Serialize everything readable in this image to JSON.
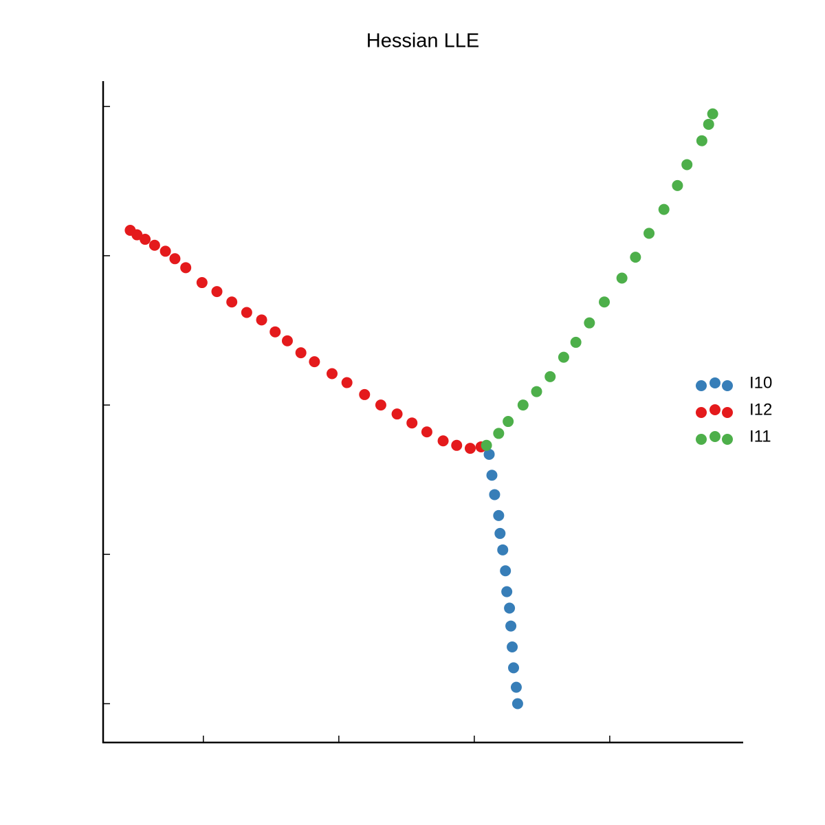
{
  "chart_data": {
    "type": "scatter",
    "title": "Hessian LLE",
    "xlim": [
      0.26,
      4.98
    ],
    "ylim": [
      -0.26,
      4.16
    ],
    "xticks": [
      1,
      2,
      3,
      4
    ],
    "yticks": [
      0,
      1,
      2,
      3,
      4
    ],
    "grid": false,
    "legend": "right",
    "series": [
      {
        "name": "I10",
        "color": "#377eb8",
        "x": [
          3.11,
          3.13,
          3.15,
          3.18,
          3.19,
          3.21,
          3.23,
          3.24,
          3.26,
          3.27,
          3.28,
          3.29,
          3.31,
          3.32
        ],
        "values": [
          1.67,
          1.53,
          1.4,
          1.26,
          1.14,
          1.03,
          0.89,
          0.75,
          0.64,
          0.52,
          0.38,
          0.24,
          0.11,
          0.0
        ]
      },
      {
        "name": "I12",
        "color": "#e41a1c",
        "x": [
          0.46,
          0.51,
          0.57,
          0.64,
          0.72,
          0.79,
          0.87,
          0.99,
          1.1,
          1.21,
          1.32,
          1.43,
          1.53,
          1.62,
          1.72,
          1.82,
          1.95,
          2.06,
          2.19,
          2.31,
          2.43,
          2.54,
          2.65,
          2.77,
          2.87,
          2.97,
          3.05
        ],
        "values": [
          3.17,
          3.14,
          3.11,
          3.07,
          3.03,
          2.98,
          2.92,
          2.82,
          2.76,
          2.69,
          2.62,
          2.57,
          2.49,
          2.43,
          2.35,
          2.29,
          2.21,
          2.15,
          2.07,
          2.0,
          1.94,
          1.88,
          1.82,
          1.76,
          1.73,
          1.71,
          1.72
        ]
      },
      {
        "name": "I11",
        "color": "#4daf4a",
        "x": [
          3.09,
          3.18,
          3.25,
          3.36,
          3.46,
          3.56,
          3.66,
          3.75,
          3.85,
          3.96,
          4.09,
          4.19,
          4.29,
          4.4,
          4.5,
          4.57,
          4.68,
          4.73,
          4.76
        ],
        "values": [
          1.73,
          1.81,
          1.89,
          2.0,
          2.09,
          2.19,
          2.32,
          2.42,
          2.55,
          2.69,
          2.85,
          2.99,
          3.15,
          3.31,
          3.47,
          3.61,
          3.77,
          3.88,
          3.95
        ]
      }
    ]
  }
}
